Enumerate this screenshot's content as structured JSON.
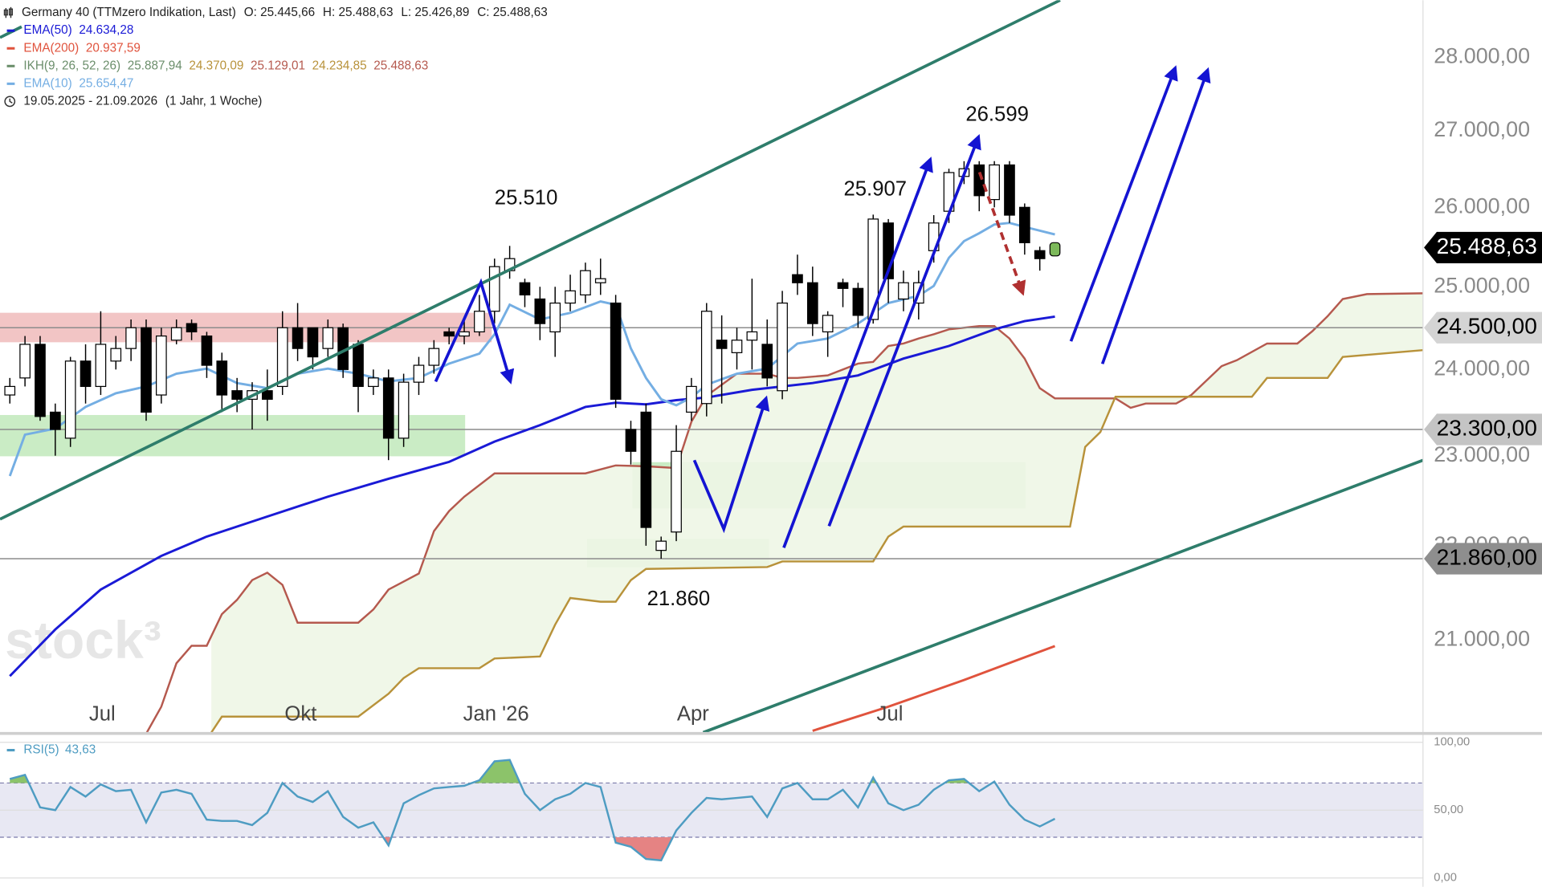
{
  "chart_data": {
    "type": "candlestick",
    "title": "Germany 40 (TTMzero Indikation, Last)",
    "ohlc_labels": [
      "O: 25.445,66",
      "H: 25.488,63",
      "L: 25.426,89",
      "C: 25.488,63"
    ],
    "date_range": "19.05.2025 - 21.09.2026",
    "period": "(1 Jahr, 1 Woche)",
    "watermark": "stock³",
    "ylog": true,
    "xlim": [
      -0.65,
      93.3
    ],
    "ylim": [
      20063,
      28799
    ],
    "xticks": [
      {
        "value": 6.1,
        "label": "Jul"
      },
      {
        "value": 19.2,
        "label": "Okt"
      },
      {
        "value": 32.1,
        "label": "Jan '26"
      },
      {
        "value": 45.1,
        "label": "Apr"
      },
      {
        "value": 58.1,
        "label": "Jul"
      }
    ],
    "yticks": [
      {
        "value": 21000,
        "label": "21.000,00"
      },
      {
        "value": 22000,
        "label": "22.000,00"
      },
      {
        "value": 23000,
        "label": "23.000,00"
      },
      {
        "value": 24000,
        "label": "24.000,00"
      },
      {
        "value": 25000,
        "label": "25.000,00"
      },
      {
        "value": 26000,
        "label": "26.000,00"
      },
      {
        "value": 27000,
        "label": "27.000,00"
      },
      {
        "value": 28000,
        "label": "28.000,00"
      }
    ],
    "x": [
      0,
      1,
      2,
      3,
      4,
      5,
      6,
      7,
      8,
      9,
      10,
      11,
      12,
      13,
      14,
      15,
      16,
      17,
      18,
      19,
      20,
      21,
      22,
      23,
      24,
      25,
      26,
      27,
      28,
      29,
      30,
      31,
      32,
      33,
      34,
      35,
      36,
      37,
      38,
      39,
      40,
      41,
      42,
      43,
      44,
      45,
      46,
      47,
      48,
      49,
      50,
      51,
      52,
      53,
      54,
      55,
      56,
      57,
      58,
      59,
      60,
      61,
      62,
      63,
      64,
      65,
      66,
      67,
      68,
      69
    ],
    "open": [
      23700,
      23900,
      24300,
      23500,
      23200,
      24100,
      23800,
      24100,
      24250,
      24500,
      23700,
      24350,
      24550,
      24400,
      24100,
      23750,
      23650,
      23750,
      23800,
      24500,
      24500,
      24250,
      24500,
      24300,
      23800,
      23900,
      23200,
      23850,
      24050,
      24450,
      24400,
      24450,
      24700,
      25200,
      25050,
      24850,
      24450,
      24800,
      24900,
      25050,
      24800,
      23300,
      23500,
      21950,
      22150,
      23500,
      23600,
      24350,
      24200,
      24350,
      24300,
      23750,
      25150,
      25050,
      24450,
      25050,
      24980,
      24600,
      25800,
      24850,
      24800,
      25450,
      25950,
      26400,
      26550,
      26100,
      26550,
      26000,
      25450,
      25445.66
    ],
    "high": [
      23900,
      24400,
      24400,
      23600,
      24150,
      24300,
      24700,
      24400,
      24600,
      24600,
      24500,
      24600,
      24600,
      24450,
      24200,
      23900,
      23850,
      24000,
      24700,
      24800,
      24500,
      24600,
      24550,
      24350,
      24000,
      24000,
      23950,
      24150,
      24350,
      24500,
      24600,
      24900,
      25350,
      25510,
      25100,
      25000,
      25000,
      25150,
      25300,
      25350,
      24900,
      23400,
      23600,
      22100,
      23350,
      23900,
      24800,
      24650,
      24500,
      25100,
      24600,
      24950,
      25400,
      25250,
      24700,
      25100,
      25050,
      25907,
      25850,
      25200,
      25200,
      25900,
      26500,
      26599,
      26599,
      26600,
      26600,
      26050,
      25500,
      25488.63
    ],
    "low": [
      23600,
      23800,
      23400,
      23000,
      23100,
      23600,
      23700,
      24000,
      24100,
      23400,
      23600,
      24300,
      24350,
      23900,
      23500,
      23500,
      23300,
      23400,
      23700,
      24100,
      24000,
      24150,
      23900,
      23500,
      23700,
      22950,
      23100,
      23700,
      23950,
      24300,
      24300,
      24400,
      24550,
      25100,
      24750,
      24350,
      24150,
      24700,
      24800,
      24900,
      23550,
      22900,
      22000,
      21860,
      22050,
      23400,
      23450,
      23600,
      24000,
      24000,
      23800,
      23650,
      24900,
      24400,
      24150,
      24750,
      24500,
      24550,
      24800,
      24700,
      24600,
      25300,
      25800,
      26300,
      25950,
      26000,
      25800,
      25400,
      25200,
      25426.89
    ],
    "close": [
      23800,
      24300,
      23450,
      23300,
      24100,
      23800,
      24300,
      24250,
      24500,
      23500,
      24400,
      24500,
      24450,
      24050,
      23700,
      23650,
      23750,
      23650,
      24500,
      24250,
      24150,
      24500,
      24000,
      23800,
      23900,
      23200,
      23850,
      24050,
      24250,
      24400,
      24450,
      24700,
      25250,
      25350,
      24900,
      24550,
      24800,
      24950,
      25200,
      25100,
      23650,
      23050,
      22200,
      22050,
      23050,
      23800,
      24700,
      24250,
      24350,
      24450,
      23900,
      24800,
      25050,
      24550,
      24650,
      24980,
      24650,
      25850,
      25100,
      25050,
      25050,
      25800,
      26450,
      26500,
      26150,
      26550,
      25900,
      25550,
      25350,
      25488.63
    ],
    "up_color": "#ffffff",
    "down_color": "#000000",
    "last_candle_color": "#7cb95a",
    "series": [
      {
        "name": "EMA(50)",
        "legend_value": "24.634,28",
        "color": "#1a1ad6",
        "x": [
          0,
          3,
          6,
          10,
          13,
          17,
          21,
          25,
          29,
          32,
          35,
          38,
          40,
          42,
          44,
          46,
          49,
          53,
          56,
          59,
          62,
          65,
          67,
          69
        ],
        "values": [
          20630,
          21110,
          21530,
          21890,
          22100,
          22320,
          22540,
          22740,
          22930,
          23160,
          23350,
          23560,
          23610,
          23590,
          23640,
          23670,
          23760,
          23840,
          23930,
          24130,
          24280,
          24480,
          24580,
          24634.28
        ]
      },
      {
        "name": "EMA(200)",
        "legend_value": "20.937,59",
        "color": "#e0533d",
        "x": [
          53,
          58,
          63,
          69
        ],
        "values": [
          20080,
          20320,
          20590,
          20937.59
        ]
      },
      {
        "name": "EMA(10)",
        "legend_value": "25.654,47",
        "color": "#74aee3",
        "x": [
          0,
          1,
          3,
          5,
          7,
          9,
          11,
          13,
          15,
          17,
          19,
          21,
          23,
          25,
          27,
          29,
          31,
          32,
          33,
          35,
          37,
          39,
          40,
          41,
          42,
          43,
          44,
          45,
          46,
          48,
          50,
          52,
          54,
          56,
          58,
          60,
          61,
          62,
          63,
          64,
          65,
          66,
          67,
          69
        ],
        "values": [
          22770,
          23240,
          23310,
          23560,
          23720,
          23800,
          23950,
          24010,
          23840,
          23780,
          23950,
          24010,
          23950,
          23860,
          23900,
          24070,
          24190,
          24420,
          24780,
          24600,
          24680,
          24820,
          24780,
          24250,
          23900,
          23650,
          23580,
          23670,
          23820,
          23950,
          24010,
          24310,
          24370,
          24550,
          24800,
          24890,
          25010,
          25360,
          25570,
          25670,
          25780,
          25800,
          25750,
          25654.47
        ]
      }
    ],
    "ichimoku": {
      "name": "IKH(9, 26, 52, 26)",
      "marker_color": "#6b8e6b",
      "legend_values": [
        "25.887,94",
        "24.370,09",
        "25.129,01",
        "24.234,85",
        "25.488,63"
      ],
      "legend_colors": [
        "#6b8e6b",
        "#b8923a",
        "#b5594e",
        "#b8923a",
        "#b5594e"
      ],
      "cloud_color": "#eef6e6",
      "lines": [
        {
          "color": "#b5594e",
          "x": [
            9,
            10,
            11,
            12,
            13,
            14,
            15,
            16,
            17,
            18,
            19,
            23,
            24,
            25,
            27,
            28,
            29,
            30,
            32,
            38,
            40,
            42,
            44,
            45,
            46,
            48,
            50,
            51,
            52,
            54,
            56,
            57,
            58,
            59,
            60,
            61,
            62,
            64,
            65,
            66,
            67,
            68,
            69,
            73,
            74,
            75,
            77,
            78,
            80,
            81,
            83,
            85,
            86,
            87,
            88,
            89.6,
            93.3
          ],
          "values": [
            20050,
            20320,
            20760,
            20940,
            20940,
            21270,
            21420,
            21630,
            21710,
            21580,
            21180,
            21180,
            21320,
            21530,
            21700,
            22160,
            22380,
            22540,
            22800,
            22800,
            22890,
            22880,
            22860,
            23390,
            23690,
            23950,
            23950,
            23900,
            23900,
            23930,
            24070,
            24090,
            24280,
            24310,
            24370,
            24420,
            24480,
            24520,
            24520,
            24370,
            24130,
            23780,
            23660,
            23660,
            23550,
            23600,
            23600,
            23700,
            24040,
            24110,
            24310,
            24310,
            24460,
            24640,
            24850,
            24910,
            24920
          ]
        },
        {
          "color": "#b8923a",
          "x": [
            13.3,
            14,
            23,
            25,
            26,
            27,
            31,
            32,
            35,
            36,
            37,
            39,
            40,
            41,
            42,
            50,
            51,
            57,
            58,
            59,
            70,
            71,
            72,
            73,
            78,
            82,
            83,
            87,
            88,
            93.3
          ],
          "values": [
            20063,
            20220,
            20220,
            20450,
            20610,
            20710,
            20710,
            20810,
            20830,
            21160,
            21440,
            21400,
            21400,
            21630,
            21750,
            21770,
            21830,
            21830,
            22100,
            22210,
            22210,
            23100,
            23270,
            23680,
            23680,
            23680,
            23900,
            23900,
            24150,
            24230
          ]
        }
      ]
    },
    "levels": [
      {
        "value": 24500,
        "label": "24.500,00",
        "color": "#d4d4d4",
        "text_color": "#000000"
      },
      {
        "value": 23300,
        "label": "23.300,00",
        "color": "#c4c4c4",
        "text_color": "#000000"
      },
      {
        "value": 21860,
        "label": "21.860,00",
        "color": "#8e8e8e",
        "text_color": "#000000"
      }
    ],
    "last_price": {
      "value": 25488.63,
      "label": "25.488,63",
      "color": "#000000",
      "text_color": "#ffffff"
    },
    "annotations": [
      "25.510",
      "25.907",
      "26.599",
      "21.860"
    ],
    "rsi": {
      "name": "RSI(5)",
      "legend_value": "43,63",
      "color": "#4e9cc2",
      "ylim": [
        0,
        100
      ],
      "yticks": [
        {
          "value": 0,
          "label": "0,00"
        },
        {
          "value": 50,
          "label": "50,00"
        },
        {
          "value": 100,
          "label": "100,00"
        }
      ],
      "levels": [
        30,
        70
      ],
      "band_color": "#e8e8f3",
      "overbought_color": "#8cc36a",
      "oversold_color": "#e58383",
      "values": [
        73,
        76,
        52,
        50,
        67,
        60,
        69,
        64,
        65,
        41,
        63,
        65,
        62,
        43,
        42,
        42,
        39,
        48,
        70,
        60,
        56,
        64,
        45,
        37,
        41,
        24,
        55,
        61,
        66,
        67,
        68,
        72,
        86,
        87,
        62,
        50,
        58,
        62,
        70,
        67,
        26,
        23,
        14,
        13,
        35,
        48,
        59,
        58,
        59,
        60,
        45,
        66,
        70,
        58,
        58,
        65,
        52,
        74,
        55,
        50,
        54,
        65,
        72,
        73,
        64,
        71,
        54,
        43,
        38,
        43.63
      ]
    }
  }
}
